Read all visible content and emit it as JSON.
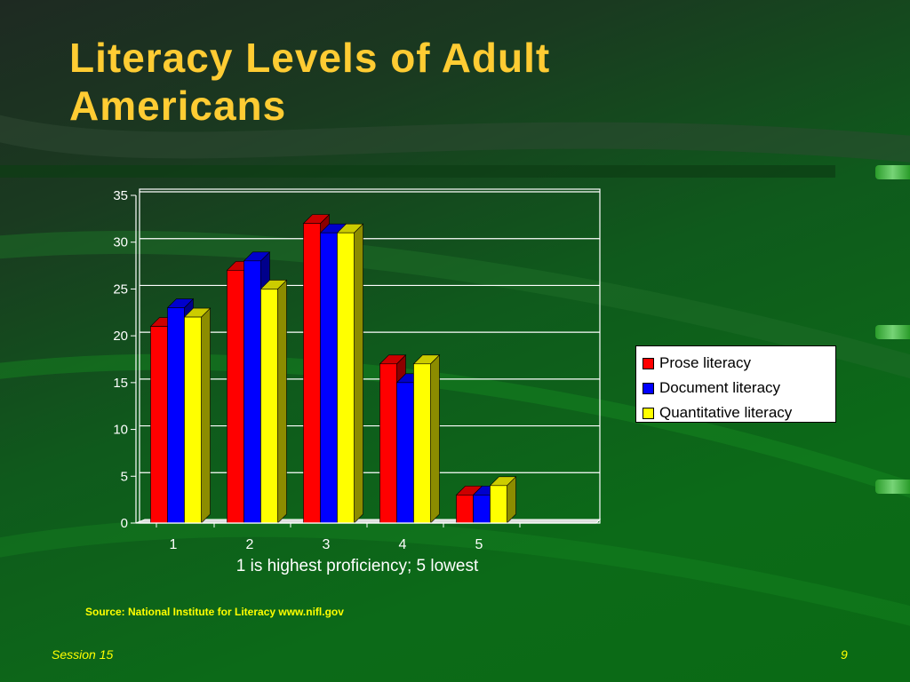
{
  "slide": {
    "title": "Literacy Levels of Adult Americans",
    "source": "Source:  National Institute for Literacy  www.nifl.gov",
    "footer_left": "Session 15",
    "page_number": "9"
  },
  "colors": {
    "title": "#ffcc33",
    "text_yellow": "#ffff00",
    "prose": "#ff0000",
    "document": "#0000ff",
    "quantitative": "#ffff00"
  },
  "chart_data": {
    "type": "bar",
    "categories": [
      "1",
      "2",
      "3",
      "4",
      "5"
    ],
    "series": [
      {
        "name": "Prose literacy",
        "values": [
          21,
          27,
          32,
          17,
          3
        ],
        "color": "#ff0000"
      },
      {
        "name": "Document literacy",
        "values": [
          23,
          28,
          31,
          15,
          3
        ],
        "color": "#0000ff"
      },
      {
        "name": "Quantitative literacy",
        "values": [
          22,
          25,
          31,
          17,
          4
        ],
        "color": "#ffff00"
      }
    ],
    "title": "",
    "xlabel": "1 is highest proficiency; 5 lowest",
    "ylabel": "",
    "ylim": [
      0,
      35
    ],
    "yticks": [
      "0",
      "5",
      "10",
      "15",
      "20",
      "25",
      "30",
      "35"
    ],
    "grid": true,
    "legend_position": "right",
    "style": "3d-column"
  }
}
